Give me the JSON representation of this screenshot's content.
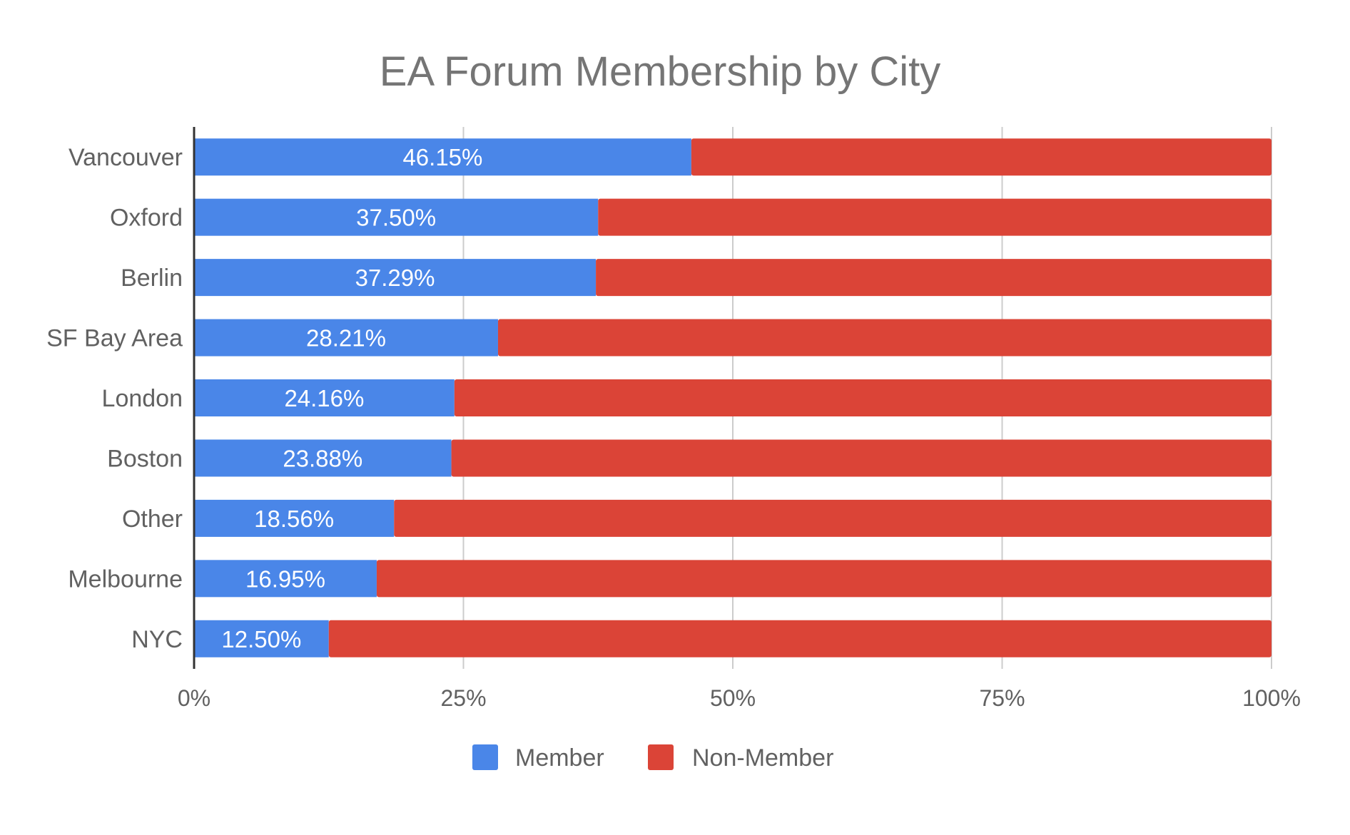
{
  "chart_data": {
    "type": "bar",
    "orientation": "horizontal",
    "stacked": true,
    "stack_mode": "percent",
    "title": "EA Forum Membership by City",
    "xlabel": "",
    "ylabel": "",
    "xlim": [
      0,
      100
    ],
    "x_ticks": [
      "0%",
      "25%",
      "50%",
      "75%",
      "100%"
    ],
    "grid": true,
    "legend_position": "bottom",
    "categories": [
      "Vancouver",
      "Oxford",
      "Berlin",
      "SF Bay Area",
      "London",
      "Boston",
      "Other",
      "Melbourne",
      "NYC"
    ],
    "series": [
      {
        "name": "Member",
        "color": "#4a86e8",
        "values": [
          46.15,
          37.5,
          37.29,
          28.21,
          24.16,
          23.88,
          18.56,
          16.95,
          12.5
        ],
        "labels": [
          "46.15%",
          "37.50%",
          "37.29%",
          "28.21%",
          "24.16%",
          "23.88%",
          "18.56%",
          "16.95%",
          "12.50%"
        ]
      },
      {
        "name": "Non-Member",
        "color": "#db4437",
        "values": [
          53.85,
          62.5,
          62.71,
          71.79,
          75.84,
          76.12,
          81.44,
          83.05,
          87.5
        ]
      }
    ]
  }
}
